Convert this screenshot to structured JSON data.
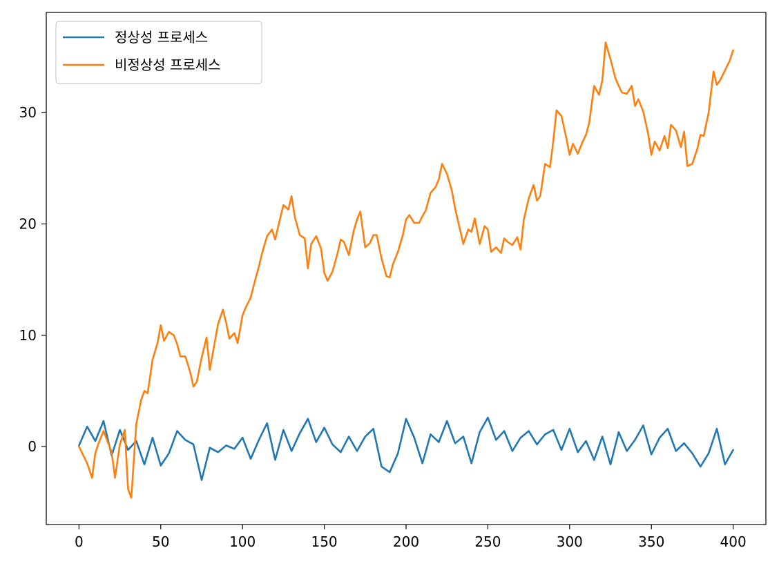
{
  "chart_data": {
    "type": "line",
    "title": "",
    "xlabel": "",
    "ylabel": "",
    "xlim": [
      -20,
      420
    ],
    "ylim": [
      -7,
      39
    ],
    "xticks": [
      0,
      50,
      100,
      150,
      200,
      250,
      300,
      350,
      400
    ],
    "yticks": [
      0,
      10,
      20,
      30
    ],
    "grid": false,
    "legend_position": "top-left",
    "series": [
      {
        "name": "정상성 프로세스",
        "color": "#1f77b4",
        "x": [
          0,
          5,
          10,
          15,
          20,
          25,
          30,
          35,
          40,
          45,
          50,
          55,
          60,
          65,
          70,
          75,
          80,
          85,
          90,
          95,
          100,
          105,
          110,
          115,
          120,
          125,
          130,
          135,
          140,
          145,
          150,
          155,
          160,
          165,
          170,
          175,
          180,
          185,
          190,
          195,
          200,
          205,
          210,
          215,
          220,
          225,
          230,
          235,
          240,
          245,
          250,
          255,
          260,
          265,
          270,
          275,
          280,
          285,
          290,
          295,
          300,
          305,
          310,
          315,
          320,
          325,
          330,
          335,
          340,
          345,
          350,
          355,
          360,
          365,
          370,
          375,
          380,
          385,
          390,
          395,
          400
        ],
        "y": [
          0.1,
          1.8,
          0.5,
          2.3,
          -0.8,
          1.5,
          -0.3,
          0.5,
          -1.6,
          0.8,
          -1.7,
          -0.6,
          1.4,
          0.6,
          0.2,
          -3.0,
          -0.1,
          -0.5,
          0.1,
          -0.2,
          0.8,
          -1.1,
          0.6,
          2.1,
          -1.2,
          1.5,
          -0.4,
          1.2,
          2.5,
          0.4,
          1.7,
          0.2,
          -0.5,
          0.9,
          -0.4,
          0.9,
          1.6,
          -1.8,
          -2.3,
          -0.6,
          2.5,
          0.8,
          -1.5,
          1.1,
          0.4,
          2.3,
          0.3,
          0.9,
          -1.5,
          1.3,
          2.6,
          0.6,
          1.4,
          -0.4,
          0.8,
          1.4,
          0.2,
          1.1,
          1.5,
          -0.3,
          1.6,
          -0.5,
          0.5,
          -1.2,
          0.9,
          -1.6,
          1.3,
          -0.4,
          0.6,
          1.9,
          -0.7,
          0.8,
          1.6,
          -0.4,
          0.3,
          -0.6,
          -1.8,
          -0.6,
          1.6,
          -1.6,
          -0.3
        ]
      },
      {
        "name": "비정상성 프로세스",
        "color": "#ff7f0e",
        "x": [
          0,
          5,
          8,
          10,
          12,
          15,
          20,
          22,
          25,
          28,
          30,
          32,
          35,
          38,
          40,
          42,
          45,
          48,
          50,
          52,
          55,
          58,
          60,
          62,
          65,
          68,
          70,
          72,
          75,
          78,
          80,
          85,
          88,
          90,
          92,
          95,
          97,
          100,
          102,
          105,
          108,
          110,
          112,
          115,
          118,
          120,
          122,
          125,
          128,
          130,
          132,
          135,
          138,
          140,
          142,
          145,
          148,
          150,
          152,
          155,
          158,
          160,
          162,
          165,
          168,
          170,
          172,
          175,
          178,
          180,
          182,
          185,
          188,
          190,
          192,
          195,
          198,
          200,
          202,
          205,
          208,
          210,
          212,
          215,
          218,
          220,
          222,
          225,
          228,
          230,
          232,
          235,
          238,
          240,
          242,
          245,
          248,
          250,
          252,
          255,
          258,
          260,
          262,
          265,
          268,
          270,
          272,
          275,
          278,
          280,
          282,
          285,
          288,
          290,
          292,
          295,
          298,
          300,
          302,
          305,
          308,
          310,
          312,
          315,
          318,
          320,
          322,
          325,
          328,
          330,
          332,
          335,
          338,
          340,
          342,
          345,
          348,
          350,
          352,
          355,
          358,
          360,
          362,
          365,
          368,
          370,
          372,
          375,
          378,
          380,
          382,
          385,
          388,
          390,
          392,
          395,
          398,
          400
        ],
        "y": [
          0,
          -1.5,
          -2.8,
          -0.6,
          0.3,
          1.4,
          -0.5,
          -2.8,
          0.2,
          1.5,
          -3.8,
          -4.6,
          2.0,
          4.2,
          5.0,
          4.8,
          7.8,
          9.3,
          10.9,
          9.5,
          10.3,
          10.0,
          9.2,
          8.1,
          8.1,
          6.7,
          5.4,
          5.8,
          8.0,
          9.8,
          6.9,
          11.0,
          12.3,
          11.1,
          9.7,
          10.2,
          9.3,
          11.8,
          12.5,
          13.4,
          15.1,
          16.2,
          17.4,
          18.9,
          19.5,
          18.6,
          19.9,
          21.7,
          21.3,
          22.5,
          20.6,
          19.0,
          18.7,
          16.0,
          18.2,
          18.9,
          17.8,
          15.6,
          14.9,
          15.7,
          17.3,
          18.6,
          18.4,
          17.2,
          19.4,
          20.4,
          21.1,
          17.9,
          18.3,
          19.0,
          19.0,
          16.9,
          15.3,
          15.2,
          16.4,
          17.5,
          19.0,
          20.4,
          20.8,
          20.1,
          20.1,
          20.7,
          21.2,
          22.8,
          23.3,
          24.0,
          25.4,
          24.5,
          23.0,
          21.4,
          20.1,
          18.2,
          19.5,
          19.3,
          20.5,
          18.2,
          19.8,
          19.5,
          17.5,
          17.9,
          17.4,
          18.7,
          18.4,
          18.1,
          18.8,
          17.7,
          20.4,
          22.3,
          23.5,
          22.1,
          22.5,
          25.4,
          25.1,
          27.4,
          30.2,
          29.7,
          27.7,
          26.2,
          27.2,
          26.3,
          27.4,
          28.0,
          29.1,
          32.4,
          31.6,
          32.9,
          36.3,
          34.8,
          33.1,
          32.4,
          31.8,
          31.7,
          32.4,
          30.6,
          31.2,
          30.1,
          28.1,
          26.2,
          27.4,
          26.6,
          27.9,
          26.8,
          28.9,
          28.4,
          26.9,
          28.3,
          25.2,
          25.4,
          26.7,
          28.0,
          27.9,
          30.0,
          33.7,
          32.5,
          32.9,
          33.8,
          34.7,
          35.6
        ]
      }
    ]
  }
}
